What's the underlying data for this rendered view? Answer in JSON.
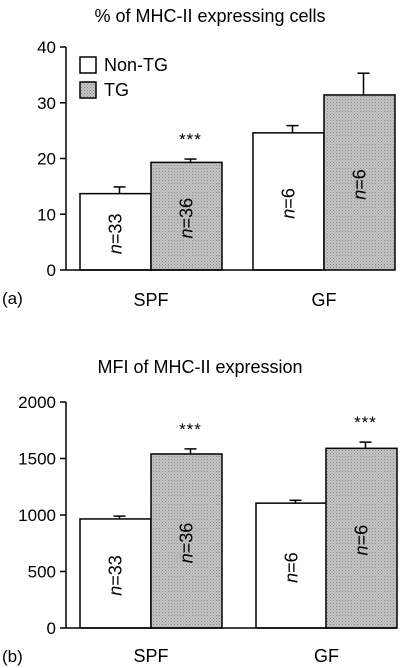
{
  "chart_data": [
    {
      "panel_label": "(a)",
      "type": "bar",
      "title": "% of MHC-II expressing cells",
      "categories": [
        "SPF",
        "GF"
      ],
      "ylim": [
        0,
        40
      ],
      "yticks": [
        0,
        10,
        20,
        30,
        40
      ],
      "legend": {
        "placement": "top-left",
        "entries": [
          "Non-TG",
          "TG"
        ]
      },
      "series": [
        {
          "name": "Non-TG",
          "color": "#ffffff",
          "values": [
            13.7,
            24.6
          ],
          "errors": [
            1.2,
            1.3
          ],
          "n_labels": [
            "n=33",
            "n=6"
          ],
          "significance": [
            "",
            ""
          ]
        },
        {
          "name": "TG",
          "color": "#b3b3b3",
          "values": [
            19.3,
            31.4
          ],
          "errors": [
            0.6,
            3.9
          ],
          "n_labels": [
            "n=36",
            "n=6"
          ],
          "significance": [
            "***",
            ""
          ]
        }
      ]
    },
    {
      "panel_label": "(b)",
      "type": "bar",
      "title": "MFI of MHC-II expression",
      "categories": [
        "SPF",
        "GF"
      ],
      "ylim": [
        0,
        2000
      ],
      "yticks": [
        0,
        500,
        1000,
        1500,
        2000
      ],
      "series": [
        {
          "name": "Non-TG",
          "color": "#ffffff",
          "values": [
            965,
            1105
          ],
          "errors": [
            25,
            25
          ],
          "n_labels": [
            "n=33",
            "n=6"
          ],
          "significance": [
            "",
            ""
          ]
        },
        {
          "name": "TG",
          "color": "#b3b3b3",
          "values": [
            1540,
            1590
          ],
          "errors": [
            45,
            55
          ],
          "n_labels": [
            "n=36",
            "n=6"
          ],
          "significance": [
            "***",
            "***"
          ]
        }
      ]
    }
  ]
}
